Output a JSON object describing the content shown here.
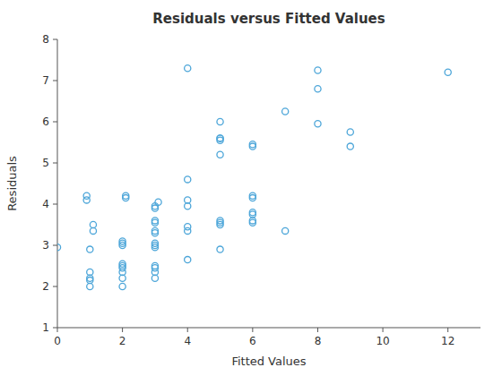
{
  "chart_data": {
    "type": "scatter",
    "title": "Residuals versus Fitted Values",
    "xlabel": "Fitted Values",
    "ylabel": "Residuals",
    "xlim": [
      0,
      13
    ],
    "ylim": [
      1,
      8
    ],
    "xticks": [
      0,
      2,
      4,
      6,
      8,
      10,
      12
    ],
    "yticks": [
      1,
      2,
      3,
      4,
      5,
      6,
      7,
      8
    ],
    "color": "#4da6d9",
    "marker": "open-circle",
    "grid": false,
    "x": [
      0.0,
      0.9,
      0.9,
      1.0,
      1.0,
      1.0,
      1.0,
      1.0,
      1.1,
      1.1,
      2.0,
      2.0,
      2.0,
      2.0,
      2.0,
      2.0,
      2.0,
      2.0,
      2.0,
      2.1,
      2.1,
      3.0,
      3.0,
      3.0,
      3.0,
      3.0,
      3.0,
      3.0,
      3.0,
      3.0,
      3.0,
      3.0,
      3.0,
      3.0,
      3.1,
      4.0,
      4.0,
      4.0,
      4.0,
      4.0,
      4.0,
      4.0,
      5.0,
      5.0,
      5.0,
      5.0,
      5.0,
      5.0,
      5.0,
      5.0,
      5.0,
      6.0,
      6.0,
      6.0,
      6.0,
      6.0,
      6.0,
      6.0,
      6.0,
      7.0,
      7.0,
      8.0,
      8.0,
      8.0,
      9.0,
      9.0,
      12.0
    ],
    "y": [
      2.95,
      4.1,
      4.2,
      2.0,
      2.15,
      2.2,
      2.35,
      2.9,
      3.35,
      3.5,
      2.0,
      2.2,
      2.35,
      2.45,
      2.5,
      2.55,
      3.0,
      3.05,
      3.1,
      4.15,
      4.2,
      2.2,
      2.35,
      2.45,
      2.5,
      2.95,
      3.0,
      3.05,
      3.3,
      3.35,
      3.55,
      3.6,
      3.9,
      3.95,
      4.05,
      2.65,
      3.35,
      3.45,
      3.95,
      4.1,
      4.6,
      7.3,
      2.9,
      3.5,
      3.55,
      3.6,
      5.2,
      5.55,
      5.6,
      5.6,
      6.0,
      3.55,
      3.6,
      3.75,
      3.8,
      4.15,
      4.2,
      5.4,
      5.45,
      3.35,
      6.25,
      5.95,
      6.8,
      7.25,
      5.4,
      5.75,
      7.2
    ]
  }
}
